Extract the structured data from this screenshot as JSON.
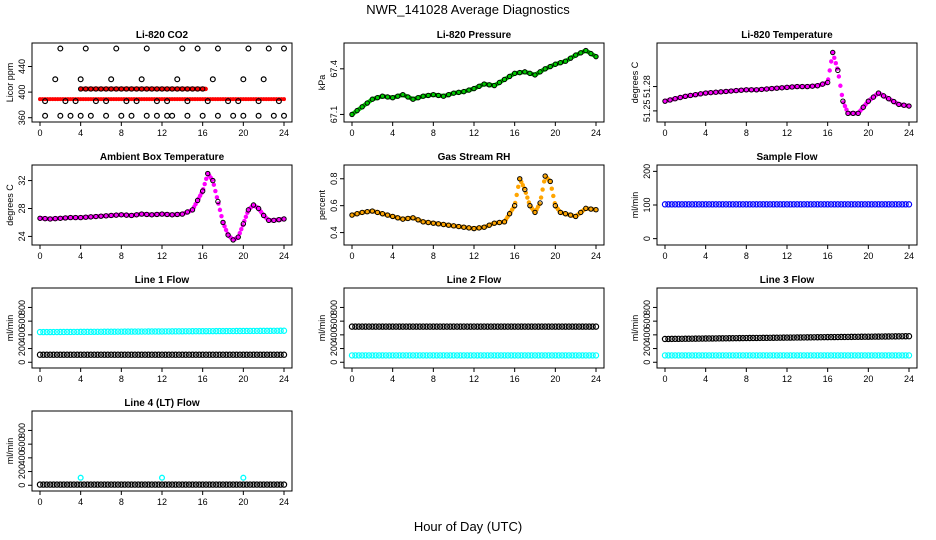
{
  "title": "NWR_141028  Average Diagnostics",
  "xlabel": "Hour of Day (UTC)",
  "chart_data": [
    {
      "type": "scatter",
      "title": "Li-820 CO2",
      "ylabel": "Licor ppm",
      "xlim": [
        0,
        24
      ],
      "ylim": [
        358,
        472
      ],
      "yticks": [
        "360",
        "400",
        "440"
      ],
      "ytick_values": [
        360,
        400,
        440
      ],
      "xticks": [
        "0",
        "4",
        "8",
        "12",
        "16",
        "20",
        "24"
      ],
      "series": [
        {
          "name": "black",
          "color": "#000000",
          "x": [
            0.5,
            1.5,
            2,
            2.5,
            3.5,
            4,
            4.5,
            5.5,
            6.5,
            7,
            7.5,
            8.5,
            9.5,
            10,
            10.5,
            11.5,
            12.5,
            13.5,
            14,
            14.5,
            15.5,
            16.5,
            17,
            17.5,
            18.5,
            19.5,
            20,
            20.5,
            21.5,
            22,
            22.5,
            23.5,
            24
          ],
          "y": [
            386,
            420,
            468,
            386,
            386,
            420,
            468,
            386,
            386,
            420,
            468,
            386,
            386,
            420,
            468,
            386,
            386,
            420,
            468,
            386,
            468,
            386,
            420,
            468,
            386,
            386,
            420,
            468,
            386,
            420,
            468,
            386,
            468
          ]
        },
        {
          "name": "black-low",
          "color": "#000000",
          "x": [
            0.5,
            2,
            3,
            4,
            5,
            6.5,
            8,
            9,
            10.5,
            11.5,
            12.5,
            13,
            14.5,
            16,
            17.5,
            19,
            20,
            21.5,
            23,
            24
          ],
          "y": [
            363,
            363,
            363,
            363,
            363,
            363,
            363,
            363,
            363,
            363,
            363,
            363,
            363,
            363,
            363,
            363,
            363,
            363,
            363,
            363
          ]
        },
        {
          "name": "red",
          "color": "#ff0000",
          "x": [
            4,
            12,
            20,
            16,
            16.3
          ],
          "y": [
            405,
            405,
            405,
            397,
            396
          ]
        }
      ],
      "band": {
        "color": "#ff0000",
        "x": [
          0,
          24
        ],
        "y": [
          389,
          389
        ]
      }
    },
    {
      "type": "scatter",
      "title": "Li-820 Pressure",
      "ylabel": "kPa",
      "xlim": [
        0,
        24
      ],
      "ylim": [
        67.07,
        67.55
      ],
      "yticks": [
        "67.1",
        "67.4"
      ],
      "ytick_values": [
        67.1,
        67.4
      ],
      "xticks": [
        "0",
        "4",
        "8",
        "12",
        "16",
        "20",
        "24"
      ],
      "series": [
        {
          "name": "pressure",
          "color": "#00cc00",
          "x": [
            0,
            1,
            2,
            3,
            4,
            5,
            6,
            7,
            8,
            9,
            10,
            11,
            12,
            13,
            14,
            15,
            16,
            17,
            18,
            19,
            20,
            21,
            22,
            23,
            24
          ],
          "y": [
            67.1,
            67.15,
            67.2,
            67.22,
            67.21,
            67.23,
            67.2,
            67.22,
            67.23,
            67.22,
            67.24,
            67.25,
            67.27,
            67.3,
            67.29,
            67.33,
            67.37,
            67.38,
            67.36,
            67.4,
            67.43,
            67.45,
            67.49,
            67.52,
            67.48
          ]
        }
      ]
    },
    {
      "type": "scatter",
      "title": "Li-820 Temperature",
      "ylabel": "degrees C",
      "xlim": [
        0,
        24
      ],
      "ylim": [
        51.24,
        51.33
      ],
      "yticks": [
        "51.25",
        "51.28"
      ],
      "ytick_values": [
        51.25,
        51.28
      ],
      "xticks": [
        "0",
        "4",
        "8",
        "12",
        "16",
        "20",
        "24"
      ],
      "series": [
        {
          "name": "temperature",
          "color": "#ff00ff",
          "x": [
            0,
            1,
            2,
            3,
            4,
            5,
            6,
            7,
            8,
            9,
            10,
            11,
            12,
            13,
            14,
            15,
            16,
            16.5,
            17,
            17.5,
            18,
            19,
            20,
            21,
            22,
            23,
            24
          ],
          "y": [
            51.262,
            51.265,
            51.268,
            51.27,
            51.272,
            51.273,
            51.274,
            51.275,
            51.276,
            51.276,
            51.277,
            51.278,
            51.279,
            51.28,
            51.28,
            51.281,
            51.285,
            51.322,
            51.3,
            51.262,
            51.247,
            51.247,
            51.262,
            51.272,
            51.265,
            51.258,
            51.256
          ]
        }
      ]
    },
    {
      "type": "scatter",
      "title": "Ambient Box Temperature",
      "ylabel": "degrees C",
      "xlim": [
        0,
        24
      ],
      "ylim": [
        23.2,
        33.8
      ],
      "yticks": [
        "24",
        "28",
        "32"
      ],
      "ytick_values": [
        24,
        28,
        32
      ],
      "xticks": [
        "0",
        "4",
        "8",
        "12",
        "16",
        "20",
        "24"
      ],
      "series": [
        {
          "name": "box temperature",
          "color": "#ff00ff",
          "x": [
            0,
            1,
            2,
            3,
            4,
            5,
            6,
            7,
            8,
            9,
            10,
            11,
            12,
            13,
            14,
            15,
            16,
            16.5,
            17,
            17.5,
            18,
            18.5,
            19,
            19.5,
            20,
            20.5,
            21,
            21.5,
            22,
            22.5,
            23,
            24
          ],
          "y": [
            26.6,
            26.5,
            26.6,
            26.7,
            26.7,
            26.8,
            26.9,
            27,
            27.1,
            27,
            27.2,
            27.1,
            27.2,
            27.1,
            27.2,
            27.8,
            30.5,
            33,
            32,
            29,
            26,
            24.2,
            23.5,
            23.9,
            25.8,
            27.8,
            28.5,
            28,
            27,
            26.3,
            26.3,
            26.5
          ]
        }
      ]
    },
    {
      "type": "scatter",
      "title": "Gas Stream RH",
      "ylabel": "percent",
      "xlim": [
        0,
        24
      ],
      "ylim": [
        0.33,
        0.88
      ],
      "yticks": [
        "0.4",
        "0.6",
        "0.8"
      ],
      "ytick_values": [
        0.4,
        0.6,
        0.8
      ],
      "xticks": [
        "0",
        "4",
        "8",
        "12",
        "16",
        "20",
        "24"
      ],
      "series": [
        {
          "name": "rh",
          "color": "#ffa500",
          "x": [
            0,
            1,
            2,
            3,
            4,
            5,
            6,
            7,
            8,
            9,
            10,
            11,
            12,
            13,
            14,
            15,
            16,
            16.5,
            17,
            17.5,
            18,
            18.5,
            19,
            19.5,
            20,
            20.5,
            21,
            22,
            23,
            24
          ],
          "y": [
            0.53,
            0.55,
            0.56,
            0.54,
            0.52,
            0.5,
            0.51,
            0.48,
            0.47,
            0.46,
            0.45,
            0.44,
            0.43,
            0.44,
            0.47,
            0.48,
            0.6,
            0.8,
            0.72,
            0.6,
            0.55,
            0.62,
            0.82,
            0.78,
            0.6,
            0.55,
            0.54,
            0.52,
            0.58,
            0.57
          ]
        }
      ]
    },
    {
      "type": "scatter",
      "title": "Sample Flow",
      "ylabel": "ml/min",
      "xlim": [
        0,
        24
      ],
      "ylim": [
        -10,
        210
      ],
      "yticks": [
        "0",
        "100",
        "200"
      ],
      "ytick_values": [
        0,
        100,
        200
      ],
      "xticks": [
        "0",
        "4",
        "8",
        "12",
        "16",
        "20",
        "24"
      ],
      "series": [
        {
          "name": "sample flow",
          "color": "#0000ff",
          "x": [
            0,
            24
          ],
          "y": [
            102,
            102
          ]
        }
      ]
    },
    {
      "type": "scatter",
      "title": "Line 1 Flow",
      "ylabel": "ml/min",
      "xlim": [
        0,
        24
      ],
      "ylim": [
        -40,
        1040
      ],
      "yticks": [
        "0",
        "200",
        "400",
        "600",
        "800"
      ],
      "ytick_values": [
        0,
        200,
        400,
        600,
        800
      ],
      "xticks": [
        "0",
        "4",
        "8",
        "12",
        "16",
        "20",
        "24"
      ],
      "series": [
        {
          "name": "cyan",
          "color": "#00ffff",
          "x": [
            0,
            24
          ],
          "y": [
            440,
            460
          ]
        },
        {
          "name": "black",
          "color": "#000000",
          "x": [
            0,
            24
          ],
          "y": [
            110,
            110
          ]
        }
      ]
    },
    {
      "type": "scatter",
      "title": "Line 2 Flow",
      "ylabel": "ml/min",
      "xlim": [
        0,
        24
      ],
      "ylim": [
        -40,
        1040
      ],
      "yticks": [
        "0",
        "200",
        "400",
        "600",
        "800"
      ],
      "ytick_values": [
        0,
        200,
        400,
        600,
        800
      ],
      "xticks": [
        "0",
        "4",
        "8",
        "12",
        "16",
        "20",
        "24"
      ],
      "series": [
        {
          "name": "black",
          "color": "#000000",
          "x": [
            0,
            24
          ],
          "y": [
            520,
            520
          ]
        },
        {
          "name": "cyan",
          "color": "#00ffff",
          "x": [
            0,
            24
          ],
          "y": [
            100,
            100
          ]
        }
      ]
    },
    {
      "type": "scatter",
      "title": "Line 3 Flow",
      "ylabel": "ml/min",
      "xlim": [
        0,
        24
      ],
      "ylim": [
        -40,
        1040
      ],
      "yticks": [
        "0",
        "200",
        "400",
        "600",
        "800"
      ],
      "ytick_values": [
        0,
        200,
        400,
        600,
        800
      ],
      "xticks": [
        "0",
        "4",
        "8",
        "12",
        "16",
        "20",
        "24"
      ],
      "series": [
        {
          "name": "black",
          "color": "#000000",
          "x": [
            0,
            24
          ],
          "y": [
            340,
            380
          ]
        },
        {
          "name": "cyan",
          "color": "#00ffff",
          "x": [
            0,
            24
          ],
          "y": [
            100,
            100
          ]
        }
      ]
    },
    {
      "type": "scatter",
      "title": "Line 4 (LT) Flow",
      "ylabel": "ml/min",
      "xlim": [
        0,
        24
      ],
      "ylim": [
        -40,
        1040
      ],
      "yticks": [
        "0",
        "200",
        "400",
        "600",
        "800"
      ],
      "ytick_values": [
        0,
        200,
        400,
        600,
        800
      ],
      "xticks": [
        "0",
        "4",
        "8",
        "12",
        "16",
        "20",
        "24"
      ],
      "series": [
        {
          "name": "black",
          "color": "#000000",
          "x": [
            0,
            24
          ],
          "y": [
            10,
            10
          ]
        },
        {
          "name": "cyan",
          "color": "#00ffff",
          "x": [
            4,
            12,
            20
          ],
          "y": [
            110,
            110,
            110
          ]
        }
      ]
    }
  ]
}
